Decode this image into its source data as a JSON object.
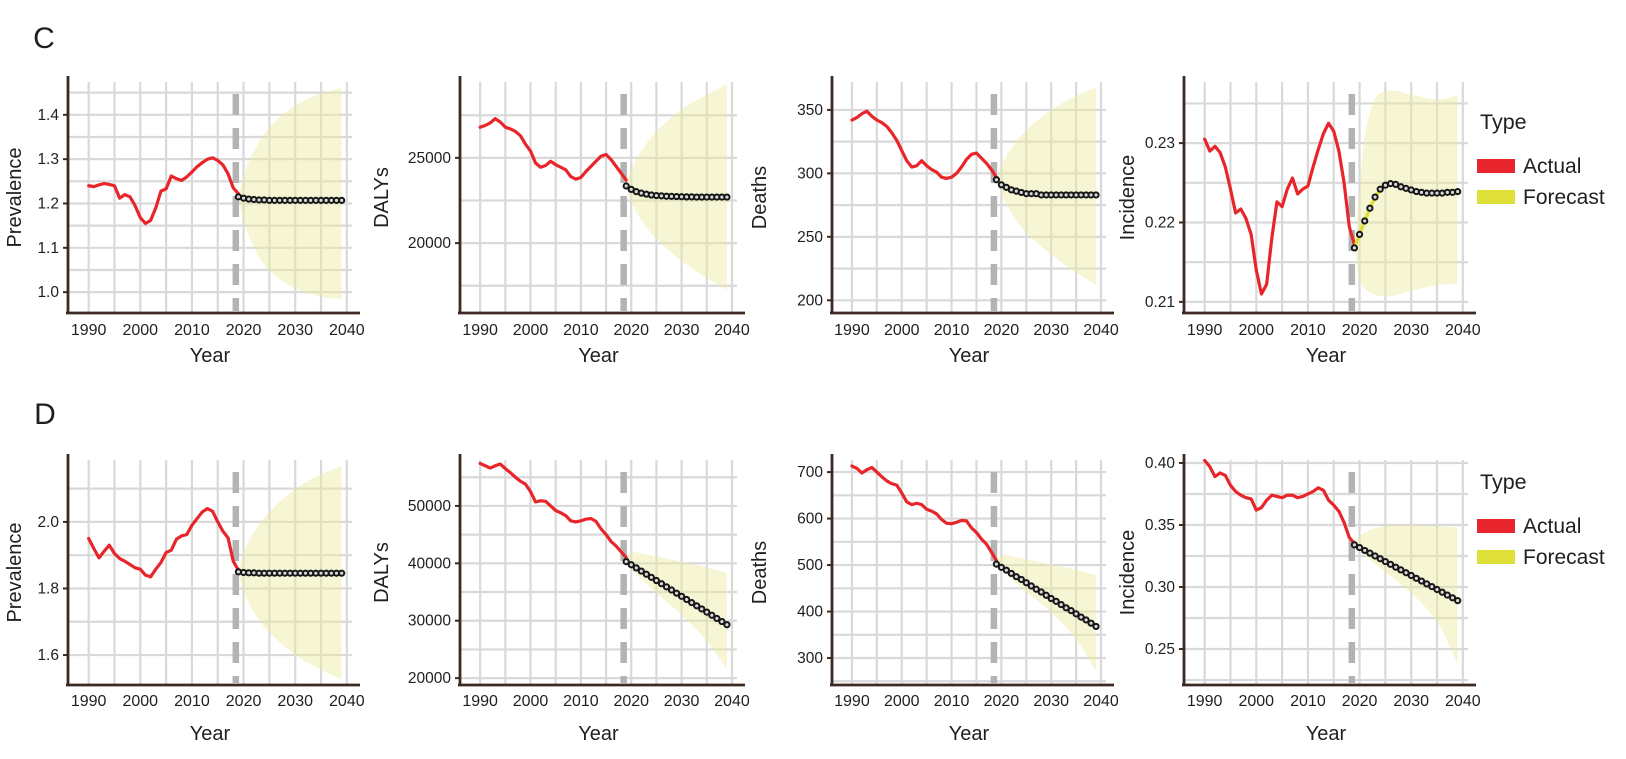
{
  "figure": {
    "sections": [
      "C",
      "D"
    ]
  },
  "legend": {
    "title": "Type",
    "items": [
      {
        "label": "Actual",
        "color": "#e8252a"
      },
      {
        "label": "Forecast",
        "color": "#dfdf3a"
      }
    ]
  },
  "colors": {
    "actual_line": "#e8252a",
    "forecast_line": "#dfdf3a",
    "band_fill": "#eeea9f",
    "band_opacity": "0.45",
    "grid": "#d9d9d9",
    "axis": "#3c2a22",
    "break_line": "#b3b3b3",
    "marker_stroke": "#161616",
    "marker_fill": "#d9d9d9",
    "text": "#1f1f1f"
  },
  "chart_data": [
    {
      "type": "line",
      "section": "C",
      "col": 0,
      "title": "",
      "xlabel": "Year",
      "ylabel": "Prevalence",
      "xlim": [
        1986,
        2041
      ],
      "ylim": [
        0.953,
        1.474
      ],
      "xticks": [
        1990,
        2000,
        2010,
        2020,
        2030,
        2040
      ],
      "yticks": [
        1.0,
        1.1,
        1.2,
        1.3,
        1.4
      ],
      "yticklabels": [
        "1.0",
        "1.1",
        "1.2",
        "1.3",
        "1.4"
      ],
      "grid_y": [
        1.0,
        1.05,
        1.1,
        1.15,
        1.2,
        1.25,
        1.3,
        1.35,
        1.4,
        1.45
      ],
      "break_year": 2018.5,
      "series": [
        {
          "name": "Actual",
          "start_year": 1990,
          "values": [
            1.24,
            1.238,
            1.242,
            1.245,
            1.243,
            1.24,
            1.212,
            1.22,
            1.215,
            1.195,
            1.168,
            1.155,
            1.162,
            1.19,
            1.228,
            1.233,
            1.262,
            1.256,
            1.252,
            1.26,
            1.271,
            1.283,
            1.292,
            1.3,
            1.303,
            1.297,
            1.287,
            1.267,
            1.235,
            1.222
          ]
        },
        {
          "name": "Forecast",
          "start_year": 2019,
          "values": [
            1.215,
            1.212,
            1.21,
            1.209,
            1.208,
            1.208,
            1.207,
            1.207,
            1.207,
            1.207,
            1.207,
            1.207,
            1.207,
            1.207,
            1.207,
            1.207,
            1.207,
            1.207,
            1.207,
            1.207,
            1.207
          ]
        }
      ],
      "band": {
        "years": [
          2019,
          2020,
          2022,
          2025,
          2030,
          2035,
          2039
        ],
        "lo": [
          1.215,
          1.163,
          1.1,
          1.048,
          1.008,
          0.99,
          0.984
        ],
        "hi": [
          1.215,
          1.262,
          1.318,
          1.372,
          1.421,
          1.448,
          1.46
        ]
      }
    },
    {
      "type": "line",
      "section": "C",
      "col": 1,
      "title": "",
      "xlabel": "Year",
      "ylabel": "DALYs",
      "xlim": [
        1986,
        2041
      ],
      "ylim": [
        15900,
        29450
      ],
      "xticks": [
        1990,
        2000,
        2010,
        2020,
        2030,
        2040
      ],
      "yticks": [
        20000,
        25000
      ],
      "yticklabels": [
        "20000",
        "25000"
      ],
      "grid_y": [
        17500,
        20000,
        22500,
        25000,
        27500
      ],
      "break_year": 2018.5,
      "series": [
        {
          "name": "Actual",
          "start_year": 1990,
          "values": [
            26800,
            26900,
            27050,
            27300,
            27100,
            26800,
            26700,
            26550,
            26300,
            25800,
            25400,
            24700,
            24450,
            24550,
            24800,
            24600,
            24450,
            24300,
            23900,
            23750,
            23850,
            24200,
            24500,
            24800,
            25100,
            25200,
            24900,
            24500,
            24100,
            23700
          ]
        },
        {
          "name": "Forecast",
          "start_year": 2019,
          "values": [
            23350,
            23150,
            23020,
            22930,
            22870,
            22820,
            22790,
            22770,
            22750,
            22740,
            22730,
            22720,
            22710,
            22710,
            22700,
            22700,
            22700,
            22700,
            22700,
            22700,
            22700
          ]
        }
      ],
      "band": {
        "years": [
          2019,
          2020,
          2022,
          2025,
          2030,
          2035,
          2039
        ],
        "lo": [
          23350,
          22450,
          21350,
          20250,
          18950,
          17950,
          17250
        ],
        "hi": [
          23350,
          24300,
          25400,
          26550,
          27850,
          28700,
          29300
        ]
      }
    },
    {
      "type": "line",
      "section": "C",
      "col": 2,
      "title": "",
      "xlabel": "Year",
      "ylabel": "Deaths",
      "xlim": [
        1986,
        2041
      ],
      "ylim": [
        190,
        372
      ],
      "xticks": [
        1990,
        2000,
        2010,
        2020,
        2030,
        2040
      ],
      "yticks": [
        200,
        250,
        300,
        350
      ],
      "yticklabels": [
        "200",
        "250",
        "300",
        "350"
      ],
      "grid_y": [
        200,
        225,
        250,
        275,
        300,
        325,
        350
      ],
      "break_year": 2018.5,
      "series": [
        {
          "name": "Actual",
          "start_year": 1990,
          "values": [
            342,
            344,
            347,
            349,
            345,
            342,
            340,
            337,
            332,
            326,
            318,
            310,
            305,
            306,
            310,
            306,
            303,
            301,
            297,
            296,
            297,
            300,
            305,
            311,
            315,
            316,
            312,
            308,
            303,
            297
          ]
        },
        {
          "name": "Forecast",
          "start_year": 2019,
          "values": [
            295,
            291,
            289,
            287,
            286,
            285,
            284,
            284,
            284,
            283,
            283,
            283,
            283,
            283,
            283,
            283,
            283,
            283,
            283,
            283,
            283
          ]
        }
      ],
      "band": {
        "years": [
          2019,
          2020,
          2022,
          2025,
          2030,
          2035,
          2039
        ],
        "lo": [
          295,
          284,
          269,
          253,
          236,
          222,
          212
        ],
        "hi": [
          295,
          306,
          320,
          334,
          350,
          361,
          368
        ]
      }
    },
    {
      "type": "line",
      "section": "C",
      "col": 3,
      "title": "",
      "xlabel": "Year",
      "ylabel": "Incidence",
      "xlim": [
        1986,
        2041
      ],
      "ylim": [
        0.2086,
        0.2377
      ],
      "xticks": [
        1990,
        2000,
        2010,
        2020,
        2030,
        2040
      ],
      "yticks": [
        0.21,
        0.22,
        0.23
      ],
      "yticklabels": [
        "0.21",
        "0.22",
        "0.23"
      ],
      "grid_y": [
        0.21,
        0.215,
        0.22,
        0.225,
        0.23,
        0.235
      ],
      "break_year": 2018.5,
      "series": [
        {
          "name": "Actual",
          "start_year": 1990,
          "values": [
            0.2305,
            0.229,
            0.2296,
            0.2288,
            0.227,
            0.2242,
            0.2212,
            0.2217,
            0.2205,
            0.2185,
            0.214,
            0.211,
            0.2122,
            0.218,
            0.2226,
            0.222,
            0.2242,
            0.2256,
            0.2236,
            0.2242,
            0.2246,
            0.227,
            0.2292,
            0.2312,
            0.2325,
            0.2315,
            0.229,
            0.225,
            0.2195,
            0.2172
          ]
        },
        {
          "name": "Forecast",
          "start_year": 2019,
          "values": [
            0.2168,
            0.2185,
            0.2202,
            0.2218,
            0.2232,
            0.2242,
            0.2247,
            0.2249,
            0.2248,
            0.2245,
            0.2243,
            0.2241,
            0.2239,
            0.2238,
            0.2237,
            0.2237,
            0.2237,
            0.2237,
            0.2238,
            0.2238,
            0.2239
          ]
        }
      ],
      "band": {
        "years": [
          2019,
          2020,
          2021,
          2023,
          2026,
          2030,
          2035,
          2039
        ],
        "lo": [
          0.2168,
          0.2128,
          0.2117,
          0.2109,
          0.2107,
          0.2114,
          0.2121,
          0.2123
        ],
        "hi": [
          0.2168,
          0.224,
          0.2308,
          0.2356,
          0.2366,
          0.2361,
          0.2355,
          0.236
        ]
      }
    },
    {
      "type": "line",
      "section": "D",
      "col": 0,
      "title": "",
      "xlabel": "Year",
      "ylabel": "Prevalence",
      "xlim": [
        1986,
        2041
      ],
      "ylim": [
        1.51,
        2.186
      ],
      "xticks": [
        1990,
        2000,
        2010,
        2020,
        2030,
        2040
      ],
      "yticks": [
        1.6,
        1.8,
        2.0
      ],
      "yticklabels": [
        "1.6",
        "1.8",
        "2.0"
      ],
      "grid_y": [
        1.6,
        1.7,
        1.8,
        1.9,
        2.0,
        2.1
      ],
      "break_year": 2018.5,
      "series": [
        {
          "name": "Actual",
          "start_year": 1990,
          "values": [
            1.95,
            1.92,
            1.892,
            1.912,
            1.93,
            1.905,
            1.89,
            1.882,
            1.872,
            1.862,
            1.858,
            1.84,
            1.835,
            1.858,
            1.878,
            1.908,
            1.915,
            1.948,
            1.958,
            1.962,
            1.99,
            2.01,
            2.03,
            2.04,
            2.032,
            2.0,
            1.972,
            1.952,
            1.882,
            1.855
          ]
        },
        {
          "name": "Forecast",
          "start_year": 2019,
          "values": [
            1.85,
            1.848,
            1.847,
            1.847,
            1.846,
            1.846,
            1.846,
            1.846,
            1.846,
            1.846,
            1.846,
            1.846,
            1.846,
            1.846,
            1.846,
            1.846,
            1.846,
            1.846,
            1.846,
            1.846,
            1.846
          ]
        }
      ],
      "band": {
        "years": [
          2019,
          2020,
          2022,
          2025,
          2030,
          2035,
          2039
        ],
        "lo": [
          1.85,
          1.793,
          1.728,
          1.668,
          1.601,
          1.556,
          1.526
        ],
        "hi": [
          1.85,
          1.908,
          1.968,
          2.03,
          2.098,
          2.143,
          2.168
        ]
      }
    },
    {
      "type": "line",
      "section": "D",
      "col": 1,
      "title": "",
      "xlabel": "Year",
      "ylabel": "DALYs",
      "xlim": [
        1986,
        2041
      ],
      "ylim": [
        18800,
        58000
      ],
      "xticks": [
        1990,
        2000,
        2010,
        2020,
        2030,
        2040
      ],
      "yticks": [
        20000,
        30000,
        40000,
        50000
      ],
      "yticklabels": [
        "20000",
        "30000",
        "40000",
        "50000"
      ],
      "grid_y": [
        20000,
        25000,
        30000,
        35000,
        40000,
        45000,
        50000,
        55000
      ],
      "break_year": 2018.5,
      "series": [
        {
          "name": "Actual",
          "start_year": 1990,
          "values": [
            57400,
            57000,
            56600,
            57000,
            57300,
            56500,
            55800,
            55000,
            54300,
            53800,
            52500,
            50700,
            50900,
            50800,
            50000,
            49200,
            48800,
            48300,
            47400,
            47200,
            47400,
            47700,
            47800,
            47300,
            46000,
            45000,
            43800,
            43000,
            42000,
            41000
          ]
        },
        {
          "name": "Forecast",
          "start_year": 2019,
          "values": [
            40300,
            39750,
            39200,
            38650,
            38100,
            37550,
            37000,
            36450,
            35900,
            35350,
            34800,
            34250,
            33700,
            33150,
            32600,
            32050,
            31500,
            30950,
            30400,
            29850,
            29300
          ]
        }
      ],
      "band": {
        "years": [
          2019,
          2020,
          2022,
          2025,
          2030,
          2035,
          2039
        ],
        "lo": [
          40300,
          39000,
          37200,
          34800,
          31000,
          26500,
          21500
        ],
        "hi": [
          40300,
          42000,
          41700,
          41200,
          40300,
          39300,
          38300
        ]
      }
    },
    {
      "type": "line",
      "section": "D",
      "col": 2,
      "title": "",
      "xlabel": "Year",
      "ylabel": "Deaths",
      "xlim": [
        1986,
        2041
      ],
      "ylim": [
        242,
        726
      ],
      "xticks": [
        1990,
        2000,
        2010,
        2020,
        2030,
        2040
      ],
      "yticks": [
        300,
        400,
        500,
        600,
        700
      ],
      "yticklabels": [
        "300",
        "400",
        "500",
        "600",
        "700"
      ],
      "grid_y": [
        250,
        300,
        350,
        400,
        450,
        500,
        550,
        600,
        650,
        700
      ],
      "break_year": 2018.5,
      "series": [
        {
          "name": "Actual",
          "start_year": 1990,
          "values": [
            713,
            708,
            698,
            705,
            710,
            700,
            690,
            681,
            675,
            672,
            655,
            636,
            630,
            633,
            630,
            620,
            616,
            610,
            598,
            590,
            589,
            592,
            596,
            595,
            580,
            570,
            556,
            545,
            528,
            510
          ]
        },
        {
          "name": "Forecast",
          "start_year": 2019,
          "values": [
            502,
            495,
            489,
            482,
            475,
            469,
            462,
            455,
            448,
            442,
            435,
            428,
            422,
            415,
            408,
            402,
            395,
            388,
            382,
            375,
            368
          ]
        }
      ],
      "band": {
        "years": [
          2019,
          2020,
          2022,
          2025,
          2030,
          2035,
          2039
        ],
        "lo": [
          502,
          492,
          470,
          442,
          398,
          340,
          272
        ],
        "hi": [
          502,
          521,
          519,
          513,
          501,
          490,
          478
        ]
      }
    },
    {
      "type": "line",
      "section": "D",
      "col": 3,
      "title": "",
      "xlabel": "Year",
      "ylabel": "Incidence",
      "xlim": [
        1986,
        2041
      ],
      "ylim": [
        0.221,
        0.4024
      ],
      "xticks": [
        1990,
        2000,
        2010,
        2020,
        2030,
        2040
      ],
      "yticks": [
        0.25,
        0.3,
        0.35,
        0.4
      ],
      "yticklabels": [
        "0.25",
        "0.30",
        "0.35",
        "0.40"
      ],
      "grid_y": [
        0.225,
        0.25,
        0.275,
        0.3,
        0.325,
        0.35,
        0.375,
        0.4
      ],
      "break_year": 2018.5,
      "series": [
        {
          "name": "Actual",
          "start_year": 1990,
          "values": [
            0.402,
            0.397,
            0.389,
            0.392,
            0.39,
            0.382,
            0.377,
            0.374,
            0.372,
            0.371,
            0.362,
            0.364,
            0.37,
            0.374,
            0.373,
            0.372,
            0.374,
            0.374,
            0.372,
            0.373,
            0.375,
            0.377,
            0.38,
            0.378,
            0.37,
            0.366,
            0.361,
            0.352,
            0.34,
            0.335
          ]
        },
        {
          "name": "Forecast",
          "start_year": 2019,
          "values": [
            0.334,
            0.3318,
            0.3295,
            0.3273,
            0.325,
            0.3228,
            0.3205,
            0.3183,
            0.316,
            0.3138,
            0.3115,
            0.3093,
            0.307,
            0.3048,
            0.3025,
            0.3003,
            0.298,
            0.2958,
            0.2935,
            0.2913,
            0.289
          ]
        }
      ],
      "band": {
        "years": [
          2019,
          2020,
          2022,
          2025,
          2030,
          2035,
          2039
        ],
        "lo": [
          0.334,
          0.33,
          0.322,
          0.312,
          0.295,
          0.272,
          0.238
        ],
        "hi": [
          0.334,
          0.341,
          0.346,
          0.349,
          0.35,
          0.349,
          0.348
        ]
      }
    }
  ]
}
